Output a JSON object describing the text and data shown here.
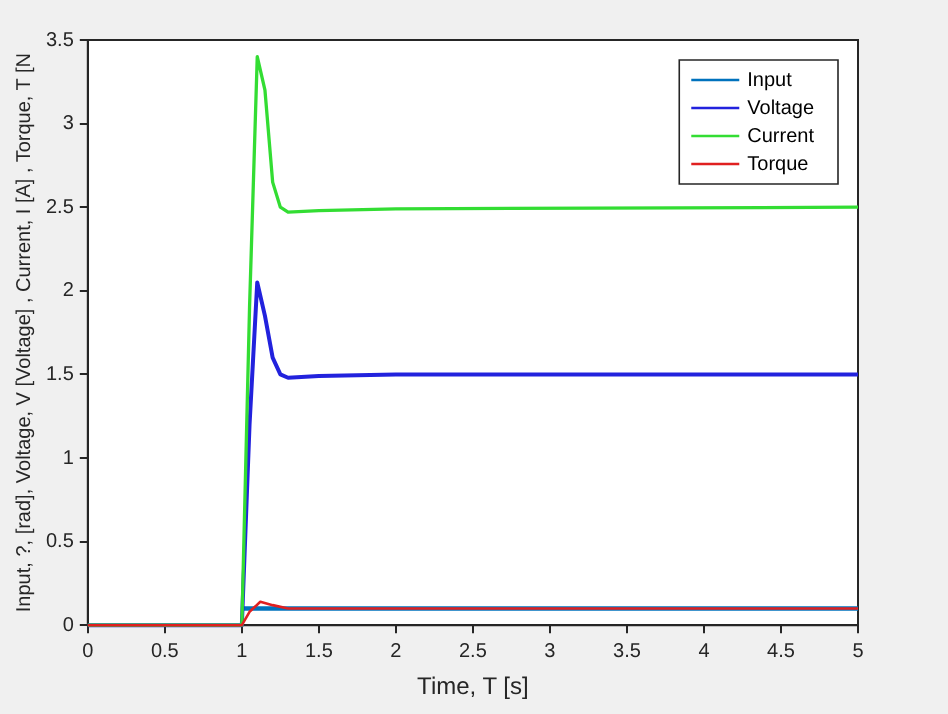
{
  "chart_data": {
    "type": "line",
    "xlabel": "Time, T [s]",
    "ylabel": "Input, ?, [rad], Voltage, V [Voltage] , Current, I [A] , Torque, T [N",
    "xlim": [
      0,
      5
    ],
    "ylim": [
      0,
      3.5
    ],
    "xticks": [
      0,
      0.5,
      1,
      1.5,
      2,
      2.5,
      3,
      3.5,
      4,
      4.5,
      5
    ],
    "yticks": [
      0,
      0.5,
      1,
      1.5,
      2,
      2.5,
      3,
      3.5
    ],
    "grid": false,
    "legend": "top right",
    "marker": "none",
    "line_style": "solid",
    "series": [
      {
        "name": "Input",
        "color": "#0072bd",
        "x": [
          1.01,
          5
        ],
        "values": [
          0.1,
          0.1
        ]
      },
      {
        "name": "Voltage",
        "color": "#2222dd",
        "x": [
          0,
          1,
          1.05,
          1.1,
          1.15,
          1.2,
          1.25,
          1.3,
          1.5,
          2,
          5
        ],
        "values": [
          0,
          0,
          1.2,
          2.05,
          1.85,
          1.6,
          1.5,
          1.48,
          1.49,
          1.5,
          1.5
        ]
      },
      {
        "name": "Current",
        "color": "#33dd33",
        "x": [
          0,
          1,
          1.05,
          1.1,
          1.15,
          1.2,
          1.25,
          1.3,
          1.5,
          2,
          5
        ],
        "values": [
          0,
          0,
          1.9,
          3.4,
          3.2,
          2.65,
          2.5,
          2.47,
          2.48,
          2.49,
          2.5
        ]
      },
      {
        "name": "Torque",
        "color": "#e02020",
        "x": [
          0,
          1,
          1.05,
          1.12,
          1.2,
          1.3,
          5
        ],
        "values": [
          0,
          0,
          0.08,
          0.14,
          0.12,
          0.1,
          0.1
        ]
      }
    ]
  }
}
